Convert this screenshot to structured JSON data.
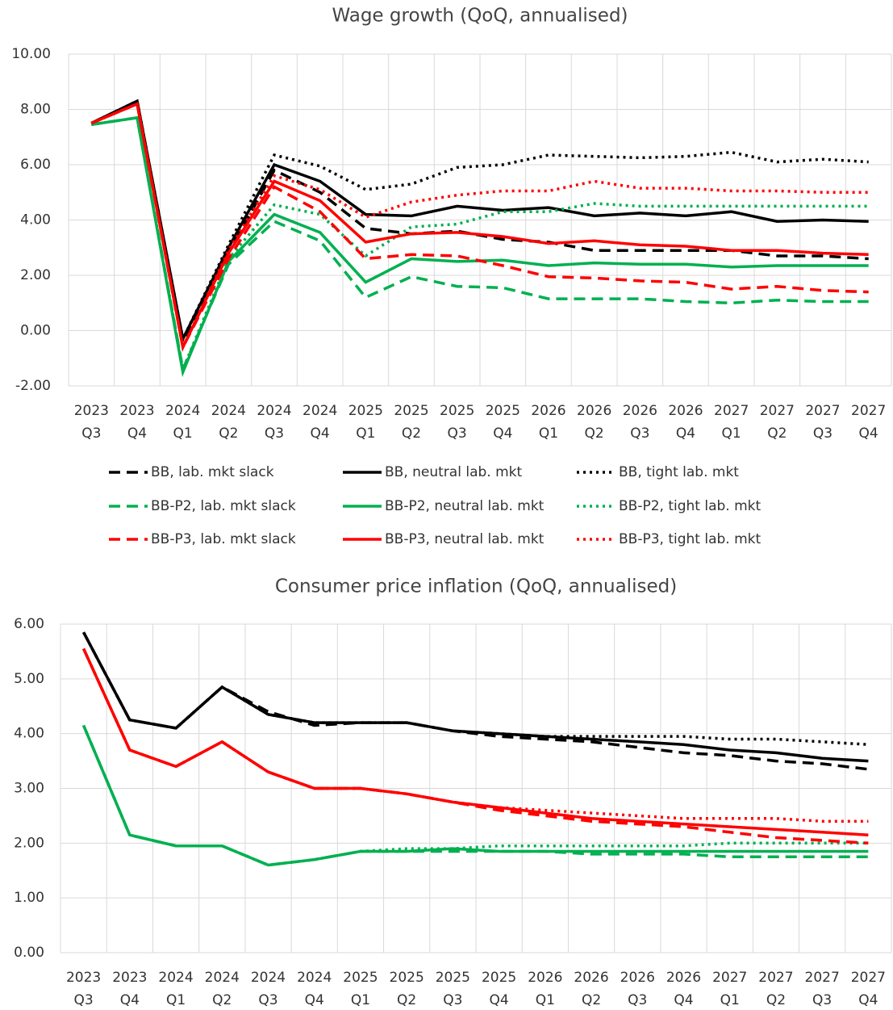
{
  "chart_data": [
    {
      "type": "line",
      "title": "Wage growth (QoQ, annualised)",
      "categories": [
        "2023 Q3",
        "2023 Q4",
        "2024 Q1",
        "2024 Q2",
        "2024 Q3",
        "2024 Q4",
        "2025 Q1",
        "2025 Q2",
        "2025 Q3",
        "2025 Q4",
        "2026 Q1",
        "2026 Q2",
        "2026 Q3",
        "2026 Q4",
        "2027 Q1",
        "2027 Q2",
        "2027 Q3",
        "2027 Q4"
      ],
      "ylim": [
        -2,
        10
      ],
      "yticks": [
        {
          "value": -2,
          "label": "-2.00"
        },
        {
          "value": 0,
          "label": "0.00"
        },
        {
          "value": 2,
          "label": "2.00"
        },
        {
          "value": 4,
          "label": "4.00"
        },
        {
          "value": 6,
          "label": "6.00"
        },
        {
          "value": 8,
          "label": "8.00"
        },
        {
          "value": 10,
          "label": "10.00"
        }
      ],
      "grid": true,
      "legend": "bottom",
      "series": [
        {
          "name": "BB, lab. mkt slack",
          "color": "#000000",
          "dash": "dashed",
          "values": [
            7.5,
            8.3,
            -0.4,
            2.8,
            5.8,
            5.0,
            3.7,
            3.5,
            3.6,
            3.3,
            3.2,
            2.9,
            2.9,
            2.9,
            2.9,
            2.7,
            2.7,
            2.6
          ]
        },
        {
          "name": "BB, neutral lab. mkt",
          "color": "#000000",
          "dash": "solid",
          "values": [
            7.5,
            8.3,
            -0.3,
            3.0,
            6.0,
            5.4,
            4.2,
            4.15,
            4.5,
            4.35,
            4.45,
            4.15,
            4.25,
            4.15,
            4.3,
            3.95,
            4.0,
            3.95
          ]
        },
        {
          "name": "BB, tight lab. mkt",
          "color": "#000000",
          "dash": "dotted",
          "values": [
            7.5,
            8.3,
            -0.3,
            3.1,
            6.35,
            5.95,
            5.1,
            5.3,
            5.9,
            6.0,
            6.35,
            6.3,
            6.25,
            6.3,
            6.45,
            6.1,
            6.2,
            6.1
          ]
        },
        {
          "name": "BB-P2, lab. mkt slack",
          "color": "#00b050",
          "dash": "dashed",
          "values": [
            7.45,
            7.7,
            -1.4,
            2.4,
            3.95,
            3.25,
            1.2,
            1.95,
            1.6,
            1.55,
            1.15,
            1.15,
            1.15,
            1.05,
            1.0,
            1.1,
            1.05,
            1.05
          ]
        },
        {
          "name": "BB-P2, neutral lab. mkt",
          "color": "#00b050",
          "dash": "solid",
          "values": [
            7.45,
            7.7,
            -1.5,
            2.5,
            4.2,
            3.55,
            1.75,
            2.6,
            2.5,
            2.55,
            2.35,
            2.45,
            2.4,
            2.4,
            2.3,
            2.35,
            2.35,
            2.35
          ]
        },
        {
          "name": "BB-P2, tight lab. mkt",
          "color": "#00b050",
          "dash": "dotted",
          "values": [
            7.45,
            7.7,
            -1.4,
            2.6,
            4.55,
            4.2,
            2.7,
            3.75,
            3.85,
            4.3,
            4.3,
            4.6,
            4.5,
            4.5,
            4.5,
            4.5,
            4.5,
            4.5
          ]
        },
        {
          "name": "BB-P3, lab. mkt slack",
          "color": "#ff0000",
          "dash": "dashed",
          "values": [
            7.5,
            8.2,
            -0.6,
            2.6,
            5.2,
            4.3,
            2.6,
            2.75,
            2.7,
            2.35,
            1.95,
            1.9,
            1.8,
            1.75,
            1.5,
            1.6,
            1.45,
            1.4
          ]
        },
        {
          "name": "BB-P3, neutral lab. mkt",
          "color": "#ff0000",
          "dash": "solid",
          "values": [
            7.5,
            8.2,
            -0.6,
            2.8,
            5.4,
            4.7,
            3.2,
            3.5,
            3.55,
            3.4,
            3.15,
            3.25,
            3.1,
            3.05,
            2.9,
            2.9,
            2.8,
            2.75
          ]
        },
        {
          "name": "BB-P3, tight lab. mkt",
          "color": "#ff0000",
          "dash": "dotted",
          "values": [
            7.5,
            8.2,
            -0.6,
            2.9,
            5.6,
            5.1,
            4.1,
            4.65,
            4.9,
            5.05,
            5.05,
            5.4,
            5.15,
            5.15,
            5.05,
            5.05,
            5.0,
            5.0
          ]
        }
      ]
    },
    {
      "type": "line",
      "title": "Consumer price inflation (QoQ, annualised)",
      "categories": [
        "2023 Q3",
        "2023 Q4",
        "2024 Q1",
        "2024 Q2",
        "2024 Q3",
        "2024 Q4",
        "2025 Q1",
        "2025 Q2",
        "2025 Q3",
        "2025 Q4",
        "2026 Q1",
        "2026 Q2",
        "2026 Q3",
        "2026 Q4",
        "2027 Q1",
        "2027 Q2",
        "2027 Q3",
        "2027 Q4"
      ],
      "ylim": [
        0,
        6
      ],
      "yticks": [
        {
          "value": 0,
          "label": "0.00"
        },
        {
          "value": 1,
          "label": "1.00"
        },
        {
          "value": 2,
          "label": "2.00"
        },
        {
          "value": 3,
          "label": "3.00"
        },
        {
          "value": 4,
          "label": "4.00"
        },
        {
          "value": 5,
          "label": "5.00"
        },
        {
          "value": 6,
          "label": "6.00"
        }
      ],
      "grid": true,
      "series": [
        {
          "color": "#000000",
          "dash": "dashed",
          "values": [
            5.85,
            4.25,
            4.1,
            4.85,
            4.4,
            4.15,
            4.2,
            4.2,
            4.05,
            3.95,
            3.9,
            3.85,
            3.75,
            3.65,
            3.6,
            3.5,
            3.45,
            3.35
          ]
        },
        {
          "color": "#000000",
          "dash": "solid",
          "values": [
            5.85,
            4.25,
            4.1,
            4.85,
            4.35,
            4.2,
            4.2,
            4.2,
            4.05,
            4.0,
            3.95,
            3.9,
            3.85,
            3.8,
            3.7,
            3.65,
            3.55,
            3.5
          ]
        },
        {
          "color": "#000000",
          "dash": "dotted",
          "values": [
            5.85,
            4.25,
            4.1,
            4.85,
            4.35,
            4.2,
            4.2,
            4.2,
            4.05,
            4.0,
            3.95,
            3.95,
            3.95,
            3.95,
            3.9,
            3.9,
            3.85,
            3.8
          ]
        },
        {
          "color": "#00b050",
          "dash": "dashed",
          "values": [
            4.15,
            2.15,
            1.95,
            1.95,
            1.6,
            1.7,
            1.85,
            1.85,
            1.85,
            1.85,
            1.85,
            1.8,
            1.8,
            1.8,
            1.75,
            1.75,
            1.75,
            1.75
          ]
        },
        {
          "color": "#00b050",
          "dash": "solid",
          "values": [
            4.15,
            2.15,
            1.95,
            1.95,
            1.6,
            1.7,
            1.85,
            1.85,
            1.9,
            1.85,
            1.85,
            1.85,
            1.85,
            1.85,
            1.85,
            1.85,
            1.85,
            1.85
          ]
        },
        {
          "color": "#00b050",
          "dash": "dotted",
          "values": [
            4.15,
            2.15,
            1.95,
            1.95,
            1.6,
            1.7,
            1.85,
            1.9,
            1.9,
            1.95,
            1.95,
            1.95,
            1.95,
            1.95,
            2.0,
            2.0,
            2.0,
            2.0
          ]
        },
        {
          "color": "#ff0000",
          "dash": "dashed",
          "values": [
            5.55,
            3.7,
            3.4,
            3.85,
            3.3,
            3.0,
            3.0,
            2.9,
            2.75,
            2.6,
            2.5,
            2.4,
            2.35,
            2.3,
            2.2,
            2.1,
            2.05,
            2.0
          ]
        },
        {
          "color": "#ff0000",
          "dash": "solid",
          "values": [
            5.55,
            3.7,
            3.4,
            3.85,
            3.3,
            3.0,
            3.0,
            2.9,
            2.75,
            2.65,
            2.55,
            2.45,
            2.4,
            2.35,
            2.3,
            2.25,
            2.2,
            2.15
          ]
        },
        {
          "color": "#ff0000",
          "dash": "dotted",
          "values": [
            5.55,
            3.7,
            3.4,
            3.85,
            3.3,
            3.0,
            3.0,
            2.9,
            2.75,
            2.65,
            2.6,
            2.55,
            2.5,
            2.45,
            2.45,
            2.45,
            2.4,
            2.4
          ]
        }
      ]
    }
  ]
}
